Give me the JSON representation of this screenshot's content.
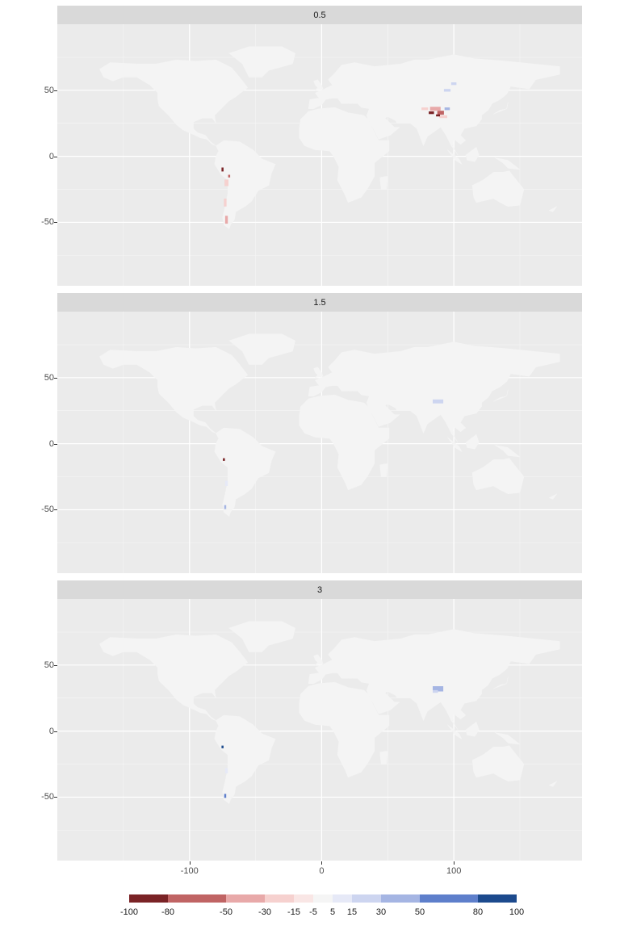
{
  "chart_data": {
    "type": "heatmap",
    "geo": "world-map-faceted",
    "facets": [
      {
        "label": "0.5"
      },
      {
        "label": "1.5"
      },
      {
        "label": "3"
      }
    ],
    "xlim": [
      -200,
      197
    ],
    "ylim": [
      -98,
      100
    ],
    "x_ticks": [
      -100,
      0,
      100
    ],
    "x_tick_labels": [
      "-100",
      "0",
      "100"
    ],
    "y_ticks": [
      50,
      0,
      -50
    ],
    "y_tick_labels": [
      "50",
      "0",
      "-50"
    ],
    "grid": true,
    "legend": {
      "placement": "bottom",
      "breaks": [
        -100,
        -80,
        -50,
        -30,
        -15,
        -5,
        5,
        15,
        30,
        50,
        80,
        100
      ],
      "labels": [
        "-100",
        "-80",
        "-50",
        "-30",
        "-15",
        "-5",
        "5",
        "15",
        "30",
        "50",
        "80",
        "100"
      ],
      "colors": [
        "#7a2326",
        "#c06464",
        "#e8a9a9",
        "#f6d1cf",
        "#f9e6e5",
        "#f5f5f5",
        "#e6e9f7",
        "#cdd5f0",
        "#a5b5e3",
        "#5e7fcb",
        "#1c4a8d"
      ]
    },
    "land_color": "#f4f4f4",
    "panel_color": "#ebebeb"
  }
}
